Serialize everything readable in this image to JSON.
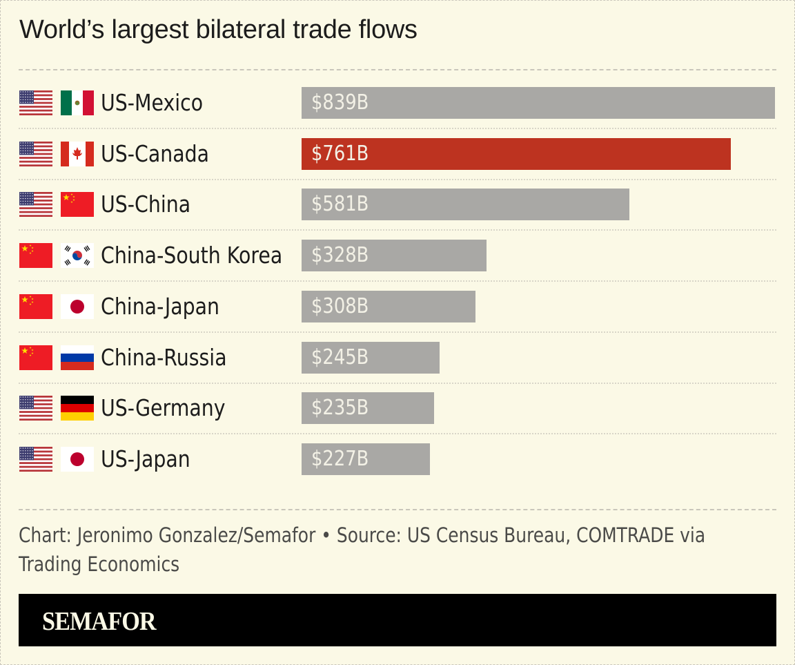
{
  "colors": {
    "background": "#fbf9e6",
    "bar_default": "#a9a8a5",
    "bar_highlight": "#bd3320",
    "text": "#1c1c1c",
    "footnote": "#4a4a48",
    "brand_bar": "#000000",
    "brand_text": "#fbf9e6"
  },
  "chart_data": {
    "type": "bar",
    "orientation": "horizontal",
    "title": "World’s largest bilateral trade flows",
    "xlabel": "",
    "ylabel": "",
    "unit": "billion USD",
    "xlim": [
      0,
      839
    ],
    "grid": false,
    "legend": null,
    "categories": [
      "US-Mexico",
      "US-Canada",
      "US-China",
      "China-South Korea",
      "China-Japan",
      "China-Russia",
      "US-Germany",
      "US-Japan"
    ],
    "values": [
      839,
      761,
      581,
      328,
      308,
      245,
      235,
      227
    ],
    "value_labels": [
      "$839B",
      "$761B",
      "$581B",
      "$328B",
      "$308B",
      "$245B",
      "$235B",
      "$227B"
    ],
    "highlight": [
      "US-Canada"
    ],
    "flags": [
      [
        "us",
        "mexico"
      ],
      [
        "us",
        "canada"
      ],
      [
        "us",
        "china"
      ],
      [
        "china",
        "south-korea"
      ],
      [
        "china",
        "japan"
      ],
      [
        "china",
        "russia"
      ],
      [
        "us",
        "germany"
      ],
      [
        "us",
        "japan"
      ]
    ]
  },
  "footnote": "Chart: Jeronimo Gonzalez/Semafor • Source: US Census Bureau, COMTRADE via Trading Economics",
  "brand": "SEMAFOR"
}
